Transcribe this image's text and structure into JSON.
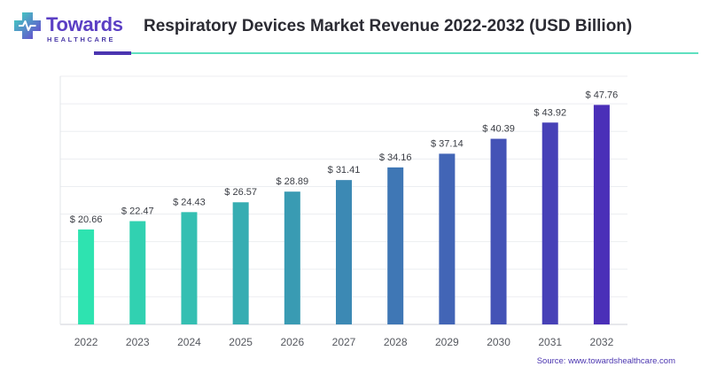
{
  "header": {
    "brand_name": "Towards",
    "brand_sub": "HEALTHCARE",
    "title": "Respiratory Devices Market Revenue 2022-2032 (USD Billion)"
  },
  "source": "Source: www.towardshealthcare.com",
  "colors": {
    "accent_purple": "#4b35b0",
    "accent_teal": "#5fe0c0",
    "bar_start": "#2ee3b0",
    "bar_end": "#4a2fb8"
  },
  "chart_data": {
    "type": "bar",
    "title": "Respiratory Devices Market Revenue 2022-2032 (USD Billion)",
    "categories": [
      "2022",
      "2023",
      "2024",
      "2025",
      "2026",
      "2027",
      "2028",
      "2029",
      "2030",
      "2031",
      "2032"
    ],
    "values": [
      20.66,
      22.47,
      24.43,
      26.57,
      28.89,
      31.41,
      34.16,
      37.14,
      40.39,
      43.92,
      47.76
    ],
    "data_labels": [
      "$ 20.66",
      "$ 22.47",
      "$ 24.43",
      "$ 26.57",
      "$ 28.89",
      "$ 31.41",
      "$ 34.16",
      "$ 37.14",
      "$ 40.39",
      "$ 43.92",
      "$ 47.76"
    ],
    "ylim": [
      0,
      54
    ],
    "grid": true,
    "legend": "none"
  }
}
